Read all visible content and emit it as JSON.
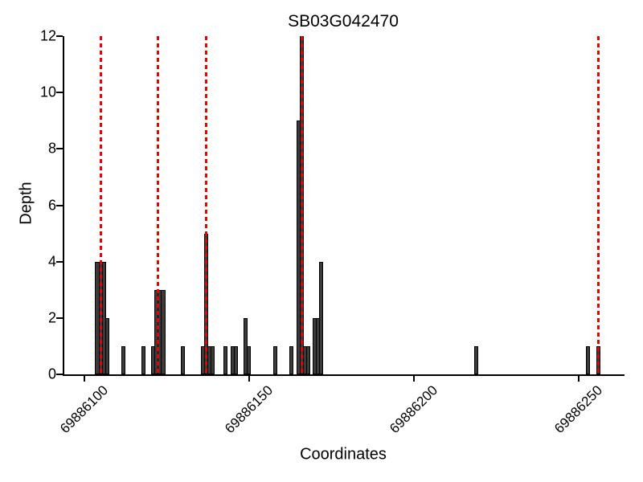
{
  "chart_data": {
    "type": "bar",
    "title": "SB03G042470",
    "xlabel": "Coordinates",
    "ylabel": "Depth",
    "xlim": [
      69886094,
      69886264
    ],
    "ylim": [
      0,
      12
    ],
    "x_ticks": [
      69886100,
      69886150,
      69886200,
      69886250
    ],
    "y_ticks": [
      0,
      2,
      4,
      6,
      8,
      10,
      12
    ],
    "grid": false,
    "legend": "none",
    "bar_unit_width": 1,
    "bars": [
      {
        "x": 69886104,
        "depth": 4
      },
      {
        "x": 69886105,
        "depth": 4
      },
      {
        "x": 69886106,
        "depth": 4
      },
      {
        "x": 69886107,
        "depth": 2
      },
      {
        "x": 69886112,
        "depth": 1
      },
      {
        "x": 69886118,
        "depth": 1
      },
      {
        "x": 69886121,
        "depth": 1
      },
      {
        "x": 69886122,
        "depth": 3
      },
      {
        "x": 69886123,
        "depth": 3
      },
      {
        "x": 69886124,
        "depth": 3
      },
      {
        "x": 69886130,
        "depth": 1
      },
      {
        "x": 69886136,
        "depth": 1
      },
      {
        "x": 69886137,
        "depth": 5
      },
      {
        "x": 69886138,
        "depth": 1
      },
      {
        "x": 69886139,
        "depth": 1
      },
      {
        "x": 69886143,
        "depth": 1
      },
      {
        "x": 69886145,
        "depth": 1
      },
      {
        "x": 69886146,
        "depth": 1
      },
      {
        "x": 69886149,
        "depth": 2
      },
      {
        "x": 69886150,
        "depth": 1
      },
      {
        "x": 69886158,
        "depth": 1
      },
      {
        "x": 69886163,
        "depth": 1
      },
      {
        "x": 69886165,
        "depth": 9
      },
      {
        "x": 69886166,
        "depth": 12
      },
      {
        "x": 69886167,
        "depth": 1
      },
      {
        "x": 69886168,
        "depth": 1
      },
      {
        "x": 69886170,
        "depth": 2
      },
      {
        "x": 69886171,
        "depth": 2
      },
      {
        "x": 69886172,
        "depth": 4
      },
      {
        "x": 69886219,
        "depth": 1
      },
      {
        "x": 69886253,
        "depth": 1
      },
      {
        "x": 69886256,
        "depth": 1
      }
    ],
    "marker_lines": {
      "style": "dashed",
      "positions": [
        69886105,
        69886122.5,
        69886137,
        69886166,
        69886256
      ]
    },
    "colors": {
      "bar_fill": "#3b3b3b",
      "bar_border": "#000000",
      "marker": "#ee0000",
      "axis": "#000000",
      "background": "#ffffff"
    }
  }
}
